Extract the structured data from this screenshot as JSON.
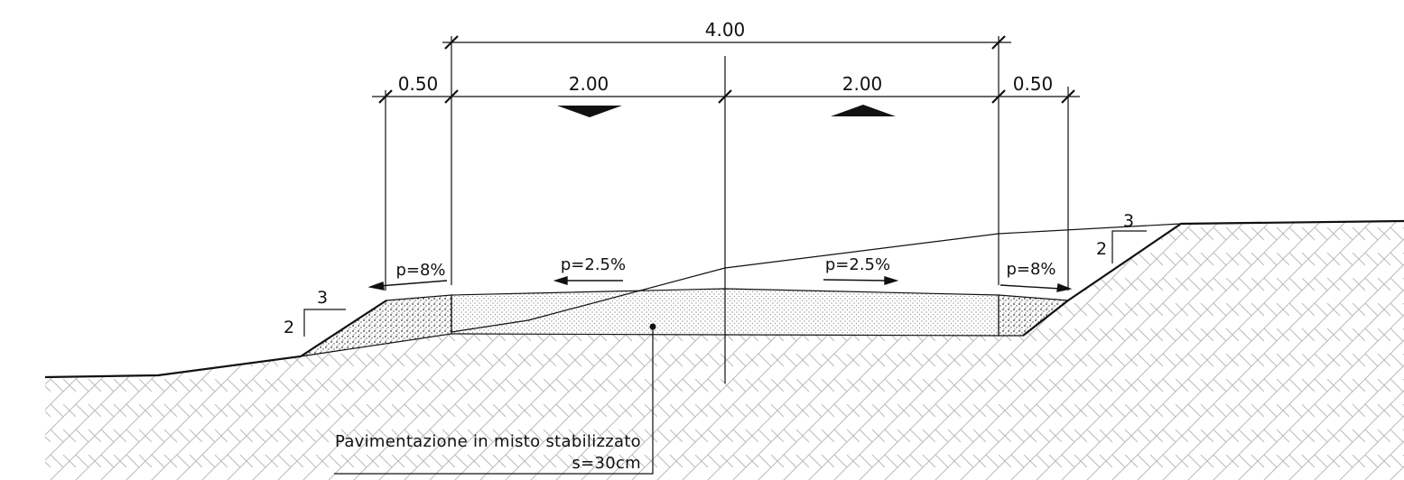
{
  "dimensions": {
    "total": "4.00",
    "left_shoulder": "0.50",
    "left_lane": "2.00",
    "right_lane": "2.00",
    "right_shoulder": "0.50"
  },
  "slopes": {
    "left_shoulder": "p=8%",
    "left_lane": "p=2.5%",
    "right_lane": "p=2.5%",
    "right_shoulder": "p=8%"
  },
  "embankment_ratios": {
    "left": {
      "horizontal": "3",
      "vertical": "2"
    },
    "right": {
      "horizontal": "3",
      "vertical": "2"
    }
  },
  "note": {
    "line1": "Pavimentazione in misto stabilizzato",
    "line2": "s=30cm"
  }
}
